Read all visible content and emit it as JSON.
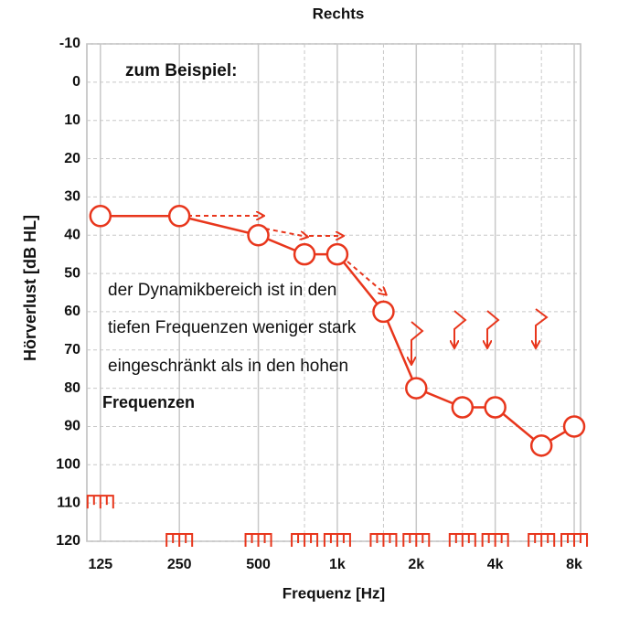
{
  "chart_data": {
    "type": "audiogram",
    "title": "Rechts",
    "xlabel": "Frequenz [Hz]",
    "ylabel": "Hörverlust [dB HL]",
    "x": [
      125,
      250,
      500,
      750,
      1000,
      1500,
      2000,
      3000,
      4000,
      6000,
      8000
    ],
    "values": [
      35,
      35,
      40,
      45,
      45,
      60,
      80,
      85,
      85,
      95,
      90
    ],
    "bracket_values": [
      110,
      120,
      120,
      120,
      120,
      120,
      120,
      120,
      120,
      120,
      120
    ],
    "color": "#e8361c",
    "xscale": "log",
    "ylim": [
      -10,
      120
    ],
    "y_inverted": true,
    "xlim": [
      111,
      8460
    ],
    "yticks": [
      -10,
      0,
      10,
      20,
      30,
      40,
      50,
      60,
      70,
      80,
      90,
      100,
      110,
      120
    ],
    "xticks": [
      125,
      250,
      500,
      {
        "value": 1000,
        "label": "1k"
      },
      {
        "value": 2000,
        "label": "2k"
      },
      {
        "value": 4000,
        "label": "4k"
      },
      {
        "value": 8000,
        "label": "8k"
      }
    ],
    "xminor": [
      750,
      1500,
      3000,
      6000
    ],
    "grid": true,
    "annotations": [
      "zum Beispiel:",
      "der Dynamikbereich ist in den",
      "tiefen Frequenzen weniger stark",
      "eingeschränkt als in den hohen",
      "Frequenzen"
    ]
  }
}
